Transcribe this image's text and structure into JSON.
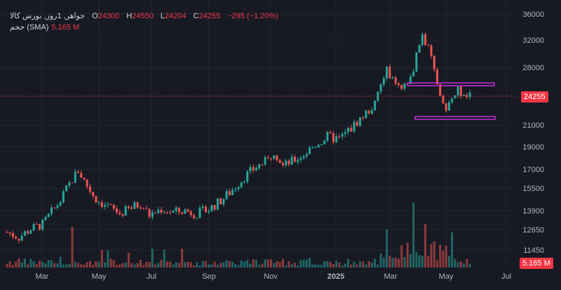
{
  "legend": {
    "symbol": "جواهر, 1روز, بورس کالا",
    "open_label": "O",
    "open": "24300",
    "high_label": "H",
    "high": "24550",
    "low_label": "L",
    "low": "24204",
    "close_label": "C",
    "close": "24255",
    "change": "−295 (−1.20%)",
    "volume_label": "حجم (SMA)",
    "volume_value": "5.165 M"
  },
  "price_badge": "24255",
  "volume_badge": "5.165 M",
  "colors": {
    "up": "#26a69a",
    "down": "#ef5350",
    "accent": "#f23645",
    "box": "#c02fd8"
  },
  "chart_data": {
    "type": "candlestick",
    "y_ticks": [
      "36000",
      "32000",
      "28000",
      "24255",
      "21000",
      "19000",
      "17000",
      "15500",
      "13900",
      "12650",
      "11450"
    ],
    "x_ticks": [
      "Mar",
      "May",
      "Jul",
      "Sep",
      "Nov",
      "2025",
      "Mar",
      "May",
      "Jul"
    ],
    "last_price": 24255,
    "support_zone": {
      "upper": 25800,
      "lower": 21800
    },
    "trend": [
      [
        0,
        12500
      ],
      [
        4,
        12200
      ],
      [
        8,
        12700
      ],
      [
        12,
        13000
      ],
      [
        18,
        14600
      ],
      [
        22,
        16200
      ],
      [
        24,
        16900
      ],
      [
        27,
        15700
      ],
      [
        30,
        14700
      ],
      [
        34,
        14200
      ],
      [
        38,
        13700
      ],
      [
        42,
        14100
      ],
      [
        45,
        14400
      ],
      [
        48,
        13600
      ],
      [
        52,
        14000
      ],
      [
        56,
        13800
      ],
      [
        60,
        13900
      ],
      [
        64,
        13700
      ],
      [
        68,
        14000
      ],
      [
        72,
        14600
      ],
      [
        76,
        15400
      ],
      [
        80,
        16400
      ],
      [
        84,
        17200
      ],
      [
        88,
        17800
      ],
      [
        90,
        18700
      ],
      [
        93,
        17300
      ],
      [
        96,
        17700
      ],
      [
        100,
        18300
      ],
      [
        104,
        19200
      ],
      [
        108,
        19900
      ],
      [
        112,
        19700
      ],
      [
        116,
        20700
      ],
      [
        120,
        22000
      ],
      [
        124,
        23300
      ],
      [
        126,
        25600
      ],
      [
        128,
        27800
      ],
      [
        130,
        26200
      ],
      [
        133,
        24800
      ],
      [
        136,
        26500
      ],
      [
        138,
        29800
      ],
      [
        140,
        32800
      ],
      [
        142,
        30500
      ],
      [
        144,
        27500
      ],
      [
        146,
        24500
      ],
      [
        148,
        22600
      ],
      [
        150,
        23800
      ],
      [
        152,
        25100
      ],
      [
        154,
        24100
      ],
      [
        156,
        24255
      ]
    ]
  }
}
